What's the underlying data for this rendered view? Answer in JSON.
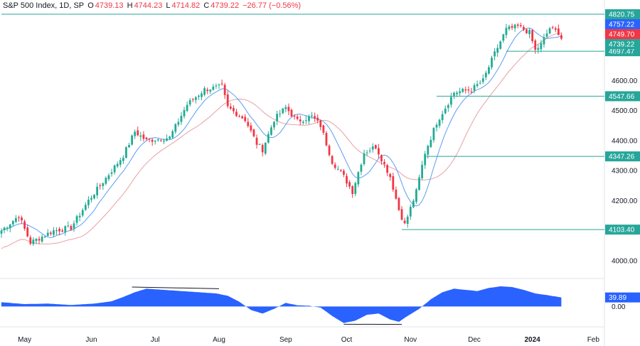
{
  "header": {
    "symbol": "S&P 500 Index, 1D, SP",
    "open_label": "O",
    "open": "4739.13",
    "high_label": "H",
    "high": "4744.23",
    "low_label": "L",
    "low": "4714.82",
    "close_label": "C",
    "close": "4739.22",
    "change": "−26.77 (−0.56%)"
  },
  "colors": {
    "up": "#22ab94",
    "down": "#f23645",
    "ma_fast": "#5b9cf6",
    "ma_slow": "#e8a0a4",
    "level_line": "#26a69a",
    "oscillator": "#2962ff",
    "price_blue_label": "#2962ff",
    "price_red_label": "#f23645",
    "price_green_label": "#26a69a"
  },
  "chart_data": {
    "type": "candlestick",
    "y_range": [
      3950,
      4835
    ],
    "y_ticks": [
      {
        "value": 4000,
        "label": "4000.00"
      },
      {
        "value": 4100,
        "label": "4100.00"
      },
      {
        "value": 4200,
        "label": "4200.00"
      },
      {
        "value": 4300,
        "label": "4300.00"
      },
      {
        "value": 4400,
        "label": "4400.00"
      },
      {
        "value": 4500,
        "label": "4500.00"
      },
      {
        "value": 4600,
        "label": "4600.00"
      }
    ],
    "x_ticks": [
      "May",
      "Jun",
      "Jul",
      "Aug",
      "Sep",
      "Oct",
      "Nov",
      "Dec",
      "2024",
      "Feb"
    ],
    "x_tick_bar_index": [
      8,
      31,
      53,
      75,
      98,
      119,
      141,
      163,
      183,
      204
    ],
    "horizontal_levels": [
      {
        "value": 4820.75,
        "label": "4820.75",
        "start_bar": 0
      },
      {
        "value": 4697.47,
        "label": "4697.47",
        "start_bar": 174
      },
      {
        "value": 4547.66,
        "label": "4547.66",
        "start_bar": 150
      },
      {
        "value": 4347.26,
        "label": "4347.26",
        "start_bar": 146
      },
      {
        "value": 4103.4,
        "label": "4103.40",
        "start_bar": 138
      }
    ],
    "price_labels": [
      {
        "value": 4757.22,
        "label": "4757.22",
        "color": "blue"
      },
      {
        "value": 4749.7,
        "label": "4749.70",
        "color": "red"
      },
      {
        "value": 4739.22,
        "label": "4739.22",
        "color": "green"
      }
    ],
    "price_anchors": [
      [
        0,
        4100
      ],
      [
        6,
        4150
      ],
      [
        10,
        4060
      ],
      [
        18,
        4100
      ],
      [
        24,
        4110
      ],
      [
        30,
        4200
      ],
      [
        38,
        4300
      ],
      [
        42,
        4350
      ],
      [
        46,
        4430
      ],
      [
        50,
        4400
      ],
      [
        58,
        4410
      ],
      [
        64,
        4520
      ],
      [
        70,
        4570
      ],
      [
        76,
        4580
      ],
      [
        78,
        4510
      ],
      [
        84,
        4470
      ],
      [
        88,
        4390
      ],
      [
        90,
        4370
      ],
      [
        94,
        4470
      ],
      [
        98,
        4510
      ],
      [
        102,
        4465
      ],
      [
        107,
        4480
      ],
      [
        110,
        4450
      ],
      [
        114,
        4330
      ],
      [
        118,
        4280
      ],
      [
        121,
        4230
      ],
      [
        125,
        4360
      ],
      [
        129,
        4380
      ],
      [
        134,
        4280
      ],
      [
        137,
        4170
      ],
      [
        139,
        4120
      ],
      [
        143,
        4230
      ],
      [
        146,
        4360
      ],
      [
        150,
        4460
      ],
      [
        156,
        4560
      ],
      [
        162,
        4570
      ],
      [
        166,
        4600
      ],
      [
        170,
        4690
      ],
      [
        174,
        4770
      ],
      [
        178,
        4780
      ],
      [
        182,
        4760
      ],
      [
        184,
        4700
      ],
      [
        186,
        4720
      ],
      [
        189,
        4775
      ],
      [
        192,
        4760
      ],
      [
        193,
        4739
      ]
    ],
    "oscillator": {
      "range": [
        -80,
        100
      ],
      "value_label": "39.89",
      "zero_label": "0.00",
      "anchors": [
        [
          0,
          18
        ],
        [
          8,
          10
        ],
        [
          16,
          12
        ],
        [
          24,
          6
        ],
        [
          32,
          12
        ],
        [
          38,
          22
        ],
        [
          42,
          40
        ],
        [
          46,
          60
        ],
        [
          50,
          75
        ],
        [
          56,
          70
        ],
        [
          62,
          65
        ],
        [
          68,
          60
        ],
        [
          74,
          55
        ],
        [
          78,
          45
        ],
        [
          82,
          20
        ],
        [
          86,
          -15
        ],
        [
          90,
          -30
        ],
        [
          94,
          -10
        ],
        [
          98,
          15
        ],
        [
          102,
          5
        ],
        [
          106,
          3
        ],
        [
          110,
          -5
        ],
        [
          114,
          -40
        ],
        [
          118,
          -70
        ],
        [
          122,
          -60
        ],
        [
          126,
          -35
        ],
        [
          130,
          -30
        ],
        [
          134,
          -55
        ],
        [
          137,
          -65
        ],
        [
          140,
          -40
        ],
        [
          144,
          -10
        ],
        [
          148,
          30
        ],
        [
          152,
          60
        ],
        [
          156,
          75
        ],
        [
          160,
          70
        ],
        [
          164,
          65
        ],
        [
          168,
          78
        ],
        [
          172,
          85
        ],
        [
          176,
          82
        ],
        [
          180,
          70
        ],
        [
          184,
          55
        ],
        [
          188,
          48
        ],
        [
          192,
          40
        ]
      ],
      "trendlines": [
        {
          "start_bar": 45,
          "end_bar": 75,
          "start": 82,
          "end": 75
        },
        {
          "start_bar": 118,
          "end_bar": 138,
          "start": -75,
          "end": -76
        }
      ]
    }
  }
}
